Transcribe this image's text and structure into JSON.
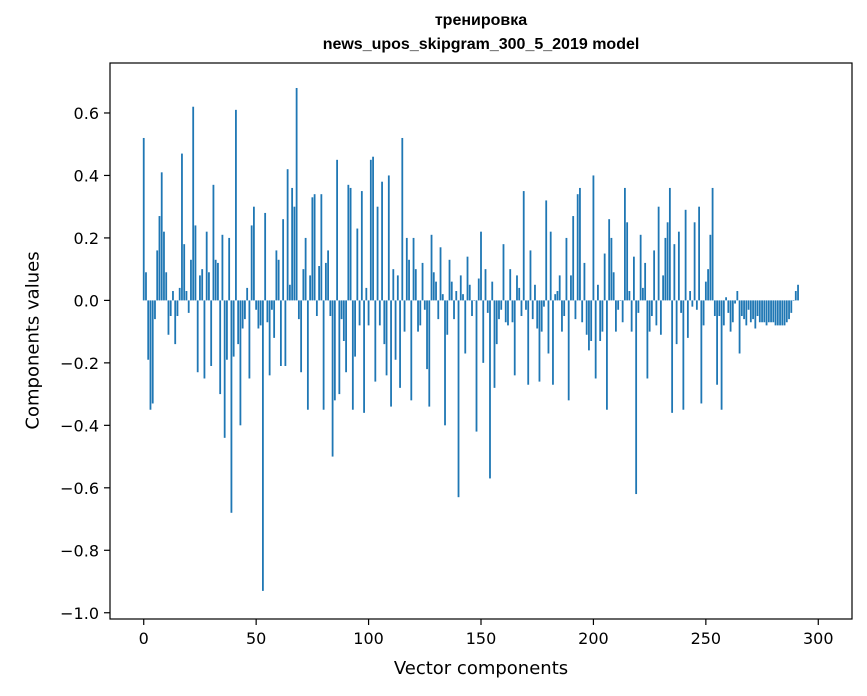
{
  "chart_data": {
    "type": "bar",
    "title": "тренировка",
    "subtitle": "news_upos_skipgram_300_5_2019 model",
    "xlabel": "Vector components",
    "ylabel": "Components values",
    "xlim": [
      -15,
      315
    ],
    "ylim": [
      -1.02,
      0.76
    ],
    "xticks": [
      0,
      50,
      100,
      150,
      200,
      250,
      300
    ],
    "xtick_labels": [
      "0",
      "50",
      "100",
      "150",
      "200",
      "250",
      "300"
    ],
    "yticks": [
      -1.0,
      -0.8,
      -0.6,
      -0.4,
      -0.2,
      0.0,
      0.2,
      0.4,
      0.6
    ],
    "ytick_labels": [
      "−1.0",
      "−0.8",
      "−0.6",
      "−0.4",
      "−0.2",
      "0.0",
      "0.2",
      "0.4",
      "0.6"
    ],
    "grid": false,
    "bar_color": "#1f77b4",
    "values": [
      0.52,
      0.09,
      -0.19,
      -0.35,
      -0.33,
      -0.06,
      0.16,
      0.27,
      0.41,
      0.22,
      0.09,
      -0.11,
      -0.05,
      0.03,
      -0.14,
      -0.05,
      0.04,
      0.47,
      0.18,
      0.03,
      -0.04,
      0.13,
      0.62,
      0.24,
      -0.23,
      0.08,
      0.1,
      -0.25,
      0.22,
      0.09,
      -0.21,
      0.37,
      0.13,
      0.12,
      -0.3,
      0.21,
      -0.44,
      -0.19,
      0.2,
      -0.68,
      -0.18,
      0.61,
      -0.14,
      -0.4,
      -0.09,
      -0.06,
      0.04,
      -0.25,
      0.24,
      0.3,
      -0.03,
      -0.09,
      -0.08,
      -0.93,
      0.28,
      -0.07,
      -0.24,
      -0.03,
      -0.12,
      0.16,
      0.13,
      -0.21,
      0.26,
      -0.21,
      0.42,
      0.05,
      0.36,
      0.3,
      0.68,
      -0.06,
      -0.23,
      0.1,
      0.2,
      -0.35,
      0.08,
      0.33,
      0.34,
      -0.05,
      0.11,
      0.34,
      -0.35,
      0.12,
      0.16,
      -0.05,
      -0.5,
      -0.32,
      0.45,
      -0.3,
      -0.06,
      -0.13,
      -0.23,
      0.37,
      0.36,
      -0.35,
      -0.18,
      0.23,
      -0.08,
      0.35,
      -0.36,
      0.04,
      -0.08,
      0.45,
      0.46,
      -0.26,
      0.3,
      -0.08,
      0.38,
      -0.14,
      -0.24,
      0.4,
      -0.34,
      0.1,
      -0.19,
      0.08,
      -0.28,
      0.52,
      -0.1,
      0.2,
      0.13,
      -0.32,
      0.2,
      0.1,
      -0.1,
      -0.08,
      0.12,
      -0.03,
      -0.22,
      -0.34,
      0.21,
      0.09,
      0.06,
      -0.06,
      0.17,
      0.02,
      -0.4,
      -0.11,
      0.13,
      0.06,
      -0.06,
      0.03,
      -0.63,
      0.08,
      0.02,
      -0.17,
      0.14,
      0.05,
      -0.05,
      0.0,
      -0.42,
      0.07,
      0.22,
      -0.2,
      0.1,
      -0.04,
      -0.57,
      0.06,
      -0.28,
      -0.14,
      -0.06,
      -0.03,
      0.18,
      -0.07,
      -0.08,
      0.1,
      -0.07,
      -0.24,
      0.08,
      0.04,
      -0.05,
      0.35,
      -0.03,
      -0.27,
      0.16,
      -0.06,
      0.05,
      -0.09,
      -0.26,
      -0.1,
      -0.02,
      0.32,
      -0.17,
      0.22,
      -0.27,
      0.02,
      0.03,
      0.08,
      -0.1,
      -0.05,
      0.2,
      -0.32,
      0.08,
      0.27,
      -0.06,
      0.34,
      0.36,
      -0.07,
      0.12,
      -0.11,
      -0.16,
      -0.13,
      0.4,
      -0.25,
      0.05,
      -0.13,
      -0.1,
      0.15,
      -0.35,
      0.26,
      0.2,
      0.09,
      -0.1,
      -0.03,
      0.0,
      -0.07,
      0.36,
      0.25,
      0.03,
      -0.1,
      0.14,
      -0.62,
      -0.04,
      0.21,
      0.04,
      0.12,
      -0.25,
      -0.1,
      -0.05,
      0.16,
      -0.08,
      0.3,
      -0.11,
      0.08,
      0.2,
      0.25,
      0.36,
      -0.36,
      0.18,
      -0.14,
      0.22,
      -0.04,
      -0.35,
      0.29,
      -0.12,
      0.03,
      -0.02,
      0.25,
      -0.03,
      0.3,
      -0.33,
      -0.08,
      0.06,
      0.1,
      0.21,
      0.36,
      -0.05,
      -0.27,
      -0.05,
      -0.35,
      -0.08,
      0.01,
      -0.04,
      -0.1,
      -0.07,
      -0.01,
      0.03,
      -0.17,
      -0.05,
      -0.06,
      -0.08,
      -0.03,
      -0.07,
      -0.06,
      -0.09,
      -0.05,
      -0.07,
      -0.07,
      -0.07,
      -0.08,
      -0.07,
      -0.07,
      -0.07,
      -0.08,
      -0.08,
      -0.08,
      -0.08,
      -0.08,
      -0.07,
      -0.06,
      -0.04,
      0.0,
      0.03,
      0.05
    ]
  }
}
